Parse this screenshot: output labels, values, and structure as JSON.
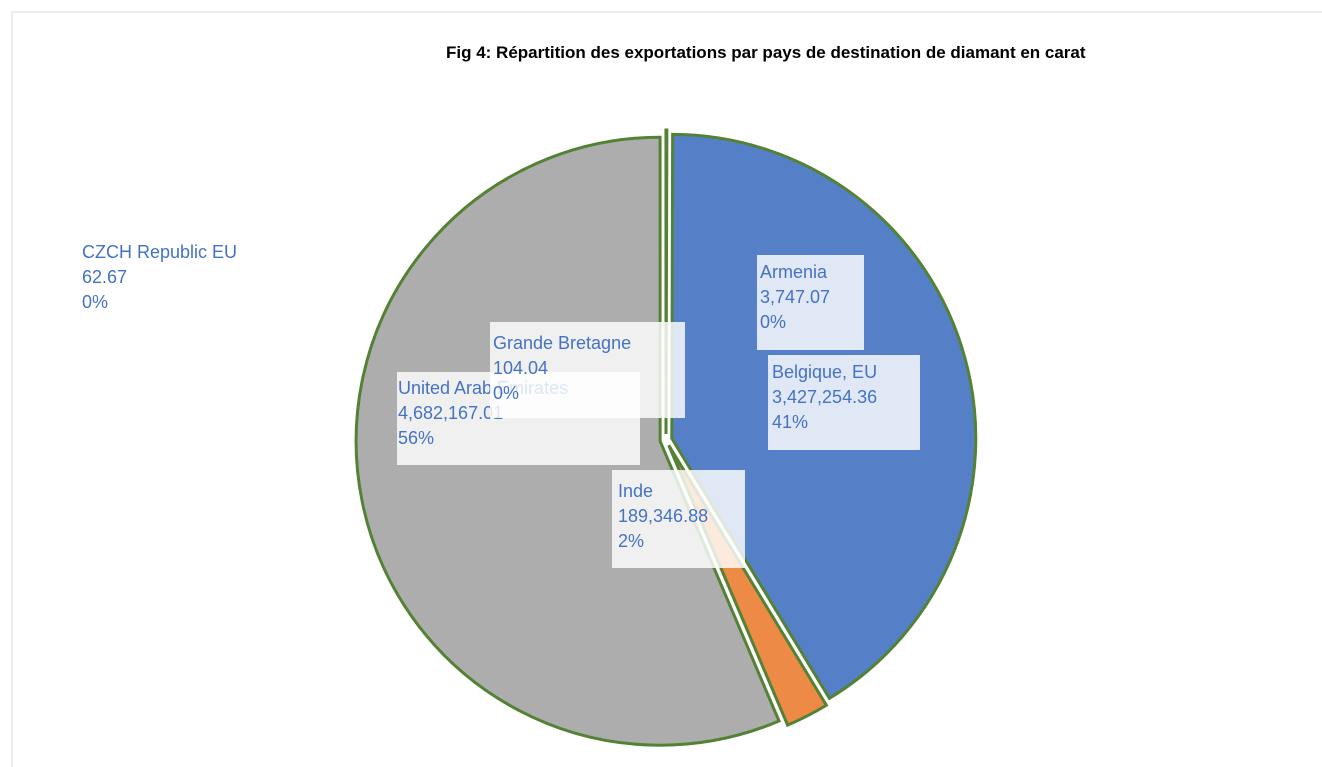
{
  "chart_data": {
    "type": "pie",
    "title": "Fig 4: Répartition des exportations par pays de destination de diamant en carat",
    "categories": [
      "Armenia",
      "Belgique, EU",
      "Inde",
      "United Arab Emirates",
      "Grande Bretagne",
      "CZCH Republic EU"
    ],
    "values": [
      3747.07,
      3427254.36,
      189346.88,
      4682167.01,
      104.04,
      62.67
    ],
    "value_labels": [
      "3,747.07",
      "3,427,254.36",
      "189,346.88",
      "4,682,167.01",
      "104.04",
      "62.67"
    ],
    "percent_labels": [
      "0%",
      "41%",
      "2%",
      "56%",
      "0%",
      "0%"
    ],
    "colors": [
      "#4472c4",
      "#5580c8",
      "#ed8a45",
      "#adadad",
      "#ffc000",
      "#5b9bd5"
    ],
    "border_color": "#548235"
  }
}
